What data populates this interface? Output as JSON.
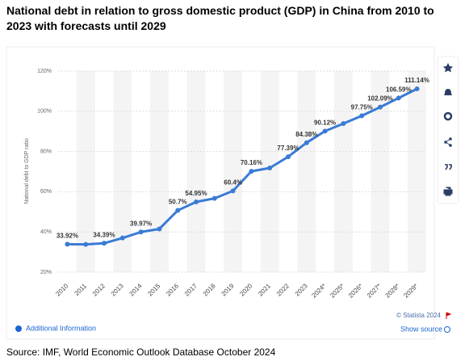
{
  "chart_data": {
    "type": "line",
    "title": "National debt in relation to gross domestic product (GDP) in China from 2010 to 2023 with forecasts until 2029",
    "y_label": "National debt to GDP ratio",
    "categories": [
      "2010",
      "2011",
      "2012",
      "2013",
      "2014",
      "2015",
      "2016",
      "2017",
      "2018",
      "2019",
      "2020",
      "2021",
      "2022",
      "2023",
      "2024*",
      "2025*",
      "2026*",
      "2027*",
      "2028*",
      "2029*"
    ],
    "values": [
      33.92,
      33.8,
      34.39,
      37.0,
      39.97,
      41.5,
      50.7,
      54.95,
      56.7,
      60.4,
      70.16,
      71.8,
      77.39,
      84.38,
      90.12,
      93.9,
      97.75,
      102.09,
      106.59,
      111.14
    ],
    "value_labels": [
      "33.92%",
      null,
      "34.39%",
      null,
      "39.97%",
      null,
      "50.7%",
      "54.95%",
      null,
      "60.4%",
      "70.16%",
      null,
      "77.39%",
      "84.38%",
      "90.12%",
      null,
      "97.75%",
      "102.09%",
      "106.59%",
      "111.14%"
    ],
    "color": "#3a7bd5",
    "ylim": [
      20,
      120
    ],
    "yticks": [
      {
        "value": 20,
        "label": "20%"
      },
      {
        "value": 40,
        "label": "40%"
      },
      {
        "value": 60,
        "label": "60%"
      },
      {
        "value": 80,
        "label": "80%"
      },
      {
        "value": 100,
        "label": "100%"
      },
      {
        "value": 120,
        "label": "120%"
      }
    ],
    "grid": true
  },
  "footer": {
    "copyright": "© Statista 2024",
    "additional_info": "Additional Information",
    "show_source": "Show source",
    "source": "Source:  IMF, World Economic Outlook Database October 2024"
  }
}
